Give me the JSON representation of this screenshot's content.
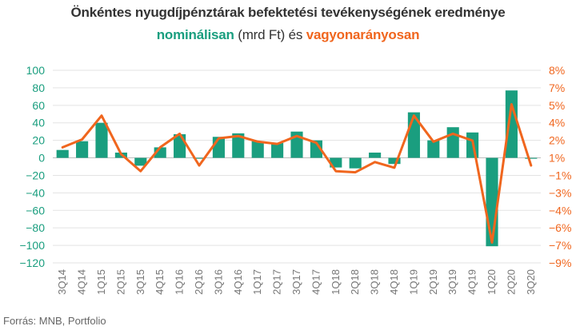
{
  "title": {
    "line1": "Önkéntes nyugdíjpénztárak befektetési tevékenységének eredménye",
    "line2_green": "nominálisan",
    "line2_mid": " (mrd Ft) és ",
    "line2_orange": "vagyonarányosan"
  },
  "source": "Forrás: MNB, Portfolio",
  "colors": {
    "bar": "#1a9e7f",
    "line": "#f0661e",
    "grid": "#e3e3e3",
    "axis": "#888888"
  },
  "chart_data": {
    "type": "bar",
    "categories": [
      "3Q14",
      "4Q14",
      "1Q15",
      "2Q15",
      "3Q15",
      "4Q15",
      "1Q16",
      "2Q16",
      "3Q16",
      "4Q16",
      "1Q17",
      "2Q17",
      "3Q17",
      "4Q17",
      "1Q18",
      "2Q18",
      "3Q18",
      "4Q18",
      "1Q19",
      "2Q19",
      "3Q19",
      "4Q19",
      "1Q20",
      "2Q20",
      "3Q20"
    ],
    "series": [
      {
        "name": "nominálisan",
        "axis": "left",
        "kind": "bar",
        "values": [
          9,
          19,
          40,
          6,
          -9,
          12,
          27,
          -1,
          24,
          28,
          19,
          17,
          30,
          20,
          -11,
          -12,
          6,
          -7,
          52,
          20,
          35,
          29,
          -101,
          77,
          -1
        ]
      },
      {
        "name": "vagyonarányosan",
        "axis": "right",
        "kind": "line",
        "values": [
          1.2,
          1.9,
          4.0,
          0.6,
          -0.9,
          1.2,
          2.4,
          -0.4,
          2.0,
          2.2,
          1.7,
          1.5,
          2.2,
          1.6,
          -0.9,
          -1.0,
          -0.1,
          -0.6,
          4.0,
          1.7,
          2.4,
          1.8,
          -7.2,
          5.0,
          -0.4
        ]
      }
    ],
    "y_left": {
      "ylim": [
        -120,
        100
      ],
      "ticks": [
        "100",
        "80",
        "60",
        "40",
        "20",
        "0",
        "−20",
        "−40",
        "−60",
        "−80",
        "−100",
        "−120"
      ]
    },
    "y_right": {
      "ylim": [
        -9,
        8
      ],
      "ticks": [
        "8%",
        "7%",
        "5%",
        "4%",
        "2%",
        "1%",
        "−1%",
        "−3%",
        "−4%",
        "−6%",
        "−7%",
        "−9%"
      ]
    },
    "grid": true
  }
}
